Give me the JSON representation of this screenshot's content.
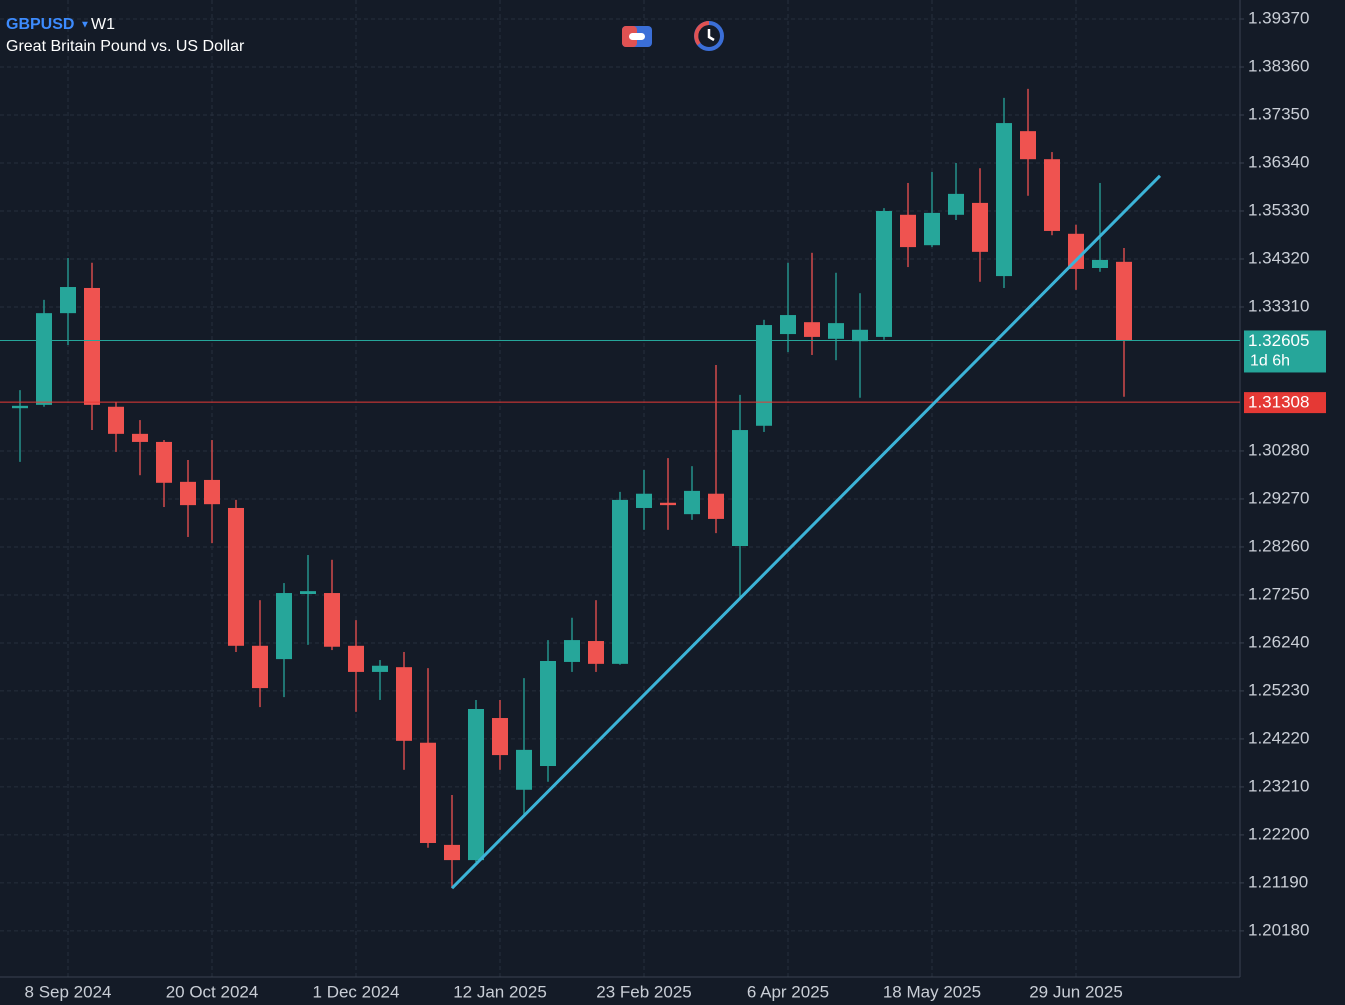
{
  "chart_data": {
    "type": "candlestick",
    "title": "GBPUSD",
    "timeframe": "W1",
    "subtitle": "Great Britain Pound vs. US Dollar",
    "categories": [
      null,
      null,
      "8 Sep 2024",
      null,
      null,
      null,
      null,
      null,
      "20 Oct 2024",
      null,
      null,
      null,
      null,
      null,
      "1 Dec 2024",
      null,
      null,
      null,
      null,
      null,
      "12 Jan 2025",
      null,
      null,
      null,
      null,
      null,
      "23 Feb 2025",
      null,
      null,
      null,
      null,
      null,
      "6 Apr 2025",
      null,
      null,
      null,
      null,
      null,
      "18 May 2025",
      null,
      null,
      null,
      null,
      null,
      "29 Jun 2025",
      null,
      null
    ],
    "open": [
      1.3118,
      1.3125,
      1.3318,
      1.3371,
      1.3121,
      1.3064,
      1.3047,
      1.2963,
      1.2967,
      1.2908,
      1.2618,
      1.259,
      1.2727,
      1.2729,
      1.2618,
      1.2563,
      1.2573,
      1.2414,
      1.2199,
      1.2167,
      1.2466,
      1.2315,
      1.2365,
      1.2584,
      1.2628,
      1.258,
      1.2908,
      1.2919,
      1.2895,
      1.2938,
      1.2828,
      1.3081,
      1.3274,
      1.3299,
      1.3264,
      1.3259,
      1.3268,
      1.3525,
      1.3461,
      1.3525,
      1.355,
      1.3396,
      1.3701,
      1.3642,
      1.3485,
      1.3413,
      1.3426
    ],
    "high": [
      1.3156,
      1.3346,
      1.3434,
      1.3424,
      1.3131,
      1.3093,
      1.3051,
      1.3009,
      1.3051,
      1.2925,
      1.2714,
      1.275,
      1.2809,
      1.2799,
      1.2672,
      1.2588,
      1.2605,
      1.2571,
      1.2304,
      1.2504,
      1.2504,
      1.255,
      1.263,
      1.2677,
      1.2714,
      1.2942,
      1.2988,
      1.3013,
      1.2996,
      1.3209,
      1.3146,
      1.3304,
      1.3424,
      1.3445,
      1.3403,
      1.336,
      1.3539,
      1.3592,
      1.3615,
      1.3634,
      1.3623,
      1.3771,
      1.379,
      1.3657,
      1.3504,
      1.3592,
      1.3455
    ],
    "low": [
      1.3005,
      1.3121,
      1.3251,
      1.3072,
      1.3026,
      1.2977,
      1.291,
      1.2847,
      1.2834,
      1.2605,
      1.2489,
      1.251,
      1.262,
      1.2609,
      1.2479,
      1.2504,
      1.2357,
      1.2193,
      1.2108,
      1.2163,
      1.2357,
      1.2262,
      1.2332,
      1.2563,
      1.2563,
      1.2578,
      1.2862,
      1.2862,
      1.2883,
      1.2855,
      1.2714,
      1.3068,
      1.3236,
      1.323,
      1.3219,
      1.314,
      1.3262,
      1.3415,
      1.3457,
      1.3514,
      1.3384,
      1.3371,
      1.3565,
      1.3482,
      1.3367,
      1.3405,
      1.3142
    ],
    "close": [
      1.3123,
      1.3318,
      1.3373,
      1.3125,
      1.3064,
      1.3047,
      1.2961,
      1.2914,
      1.2916,
      1.2618,
      1.2529,
      1.2729,
      1.2733,
      1.2616,
      1.2563,
      1.2576,
      1.2418,
      1.2203,
      1.2167,
      1.2485,
      1.2388,
      1.2399,
      1.2586,
      1.263,
      1.258,
      1.2925,
      1.2938,
      1.2914,
      1.2944,
      1.2885,
      1.3072,
      1.3293,
      1.3314,
      1.3268,
      1.3297,
      1.3283,
      1.3533,
      1.3457,
      1.3529,
      1.3569,
      1.3447,
      1.3718,
      1.3642,
      1.3491,
      1.3411,
      1.343,
      1.32605
    ],
    "up_color": "#26a69a",
    "down_color": "#ef5350",
    "ylim": [
      1.1921,
      1.3977
    ],
    "yticks": [
      {
        "value": 1.3937,
        "label": "1.39370"
      },
      {
        "value": 1.3836,
        "label": "1.38360"
      },
      {
        "value": 1.3735,
        "label": "1.37350"
      },
      {
        "value": 1.3634,
        "label": "1.36340"
      },
      {
        "value": 1.3533,
        "label": "1.35330"
      },
      {
        "value": 1.3432,
        "label": "1.34320"
      },
      {
        "value": 1.3331,
        "label": "1.33310"
      },
      {
        "value": 1.3028,
        "label": "1.30280"
      },
      {
        "value": 1.2927,
        "label": "1.29270"
      },
      {
        "value": 1.2826,
        "label": "1.28260"
      },
      {
        "value": 1.2725,
        "label": "1.27250"
      },
      {
        "value": 1.2624,
        "label": "1.26240"
      },
      {
        "value": 1.2523,
        "label": "1.25230"
      },
      {
        "value": 1.2422,
        "label": "1.24220"
      },
      {
        "value": 1.2321,
        "label": "1.23210"
      },
      {
        "value": 1.222,
        "label": "1.22200"
      },
      {
        "value": 1.2119,
        "label": "1.21190"
      },
      {
        "value": 1.2018,
        "label": "1.20180"
      }
    ],
    "grid": true,
    "price_line": {
      "value": 1.32605,
      "countdown": "1d 6h",
      "color": "#26a69a"
    },
    "level_line": {
      "value": 1.31308,
      "color": "#e53935"
    },
    "trendline": {
      "points": [
        [
          18,
          1.2108
        ],
        [
          47.5,
          1.3607
        ]
      ],
      "color": "#3cb4d8"
    }
  }
}
